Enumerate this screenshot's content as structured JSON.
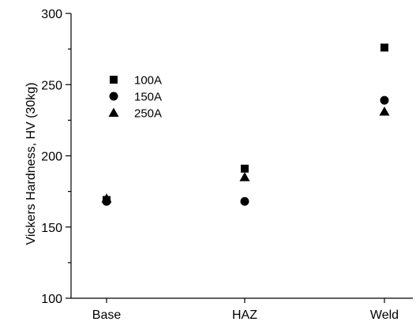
{
  "chart_data": {
    "type": "scatter",
    "title": "",
    "xlabel": "",
    "ylabel": "Vickers Hardness, HV (30kg)",
    "categories": [
      "Base",
      "HAZ",
      "Weld"
    ],
    "ylim": [
      100,
      300
    ],
    "y_major_ticks": [
      100,
      150,
      200,
      250,
      300
    ],
    "y_minor_step": 25,
    "grid": false,
    "legend_position": "upper-left",
    "series": [
      {
        "name": "100A",
        "marker": "square",
        "color": "#000000",
        "values": [
          169,
          191,
          276
        ]
      },
      {
        "name": "150A",
        "marker": "circle",
        "color": "#000000",
        "values": [
          168,
          168,
          239
        ]
      },
      {
        "name": "250A",
        "marker": "triangle",
        "color": "#000000",
        "values": [
          170,
          185,
          231
        ]
      }
    ]
  }
}
